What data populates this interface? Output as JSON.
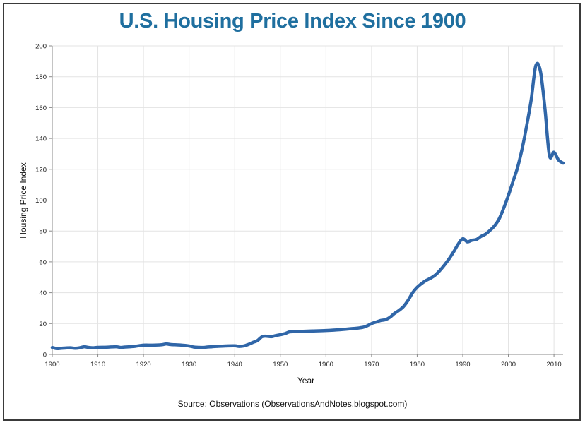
{
  "title": "U.S. Housing Price Index Since 1900",
  "source": "Source: Observations (ObservationsAndNotes.blogspot.com)",
  "colors": {
    "line": "#3066a8",
    "title": "#1f6f9f",
    "grid": "#e3e3e3"
  },
  "chart_data": {
    "type": "line",
    "title": "U.S. Housing Price Index Since 1900",
    "xlabel": "Year",
    "ylabel": "Housing Price Index",
    "xlim": [
      1900,
      2012
    ],
    "ylim": [
      0,
      200
    ],
    "xticks": [
      1900,
      1910,
      1920,
      1930,
      1940,
      1950,
      1960,
      1970,
      1980,
      1990,
      2000,
      2010
    ],
    "yticks": [
      0,
      20,
      40,
      60,
      80,
      100,
      120,
      140,
      160,
      180,
      200
    ],
    "grid": true,
    "legend": "none",
    "series": [
      {
        "x": [
          1900,
          1901,
          1902,
          1903,
          1904,
          1905,
          1906,
          1907,
          1908,
          1909,
          1910,
          1912,
          1914,
          1915,
          1916,
          1918,
          1920,
          1922,
          1924,
          1925,
          1926,
          1928,
          1930,
          1931,
          1932,
          1933,
          1934,
          1935,
          1936,
          1938,
          1940,
          1941,
          1942,
          1943,
          1944,
          1945,
          1946,
          1947,
          1948,
          1949,
          1950,
          1951,
          1952,
          1953,
          1954,
          1955,
          1957,
          1960,
          1963,
          1966,
          1968,
          1969,
          1970,
          1971,
          1972,
          1973,
          1974,
          1975,
          1976,
          1977,
          1978,
          1979,
          1980,
          1981,
          1982,
          1983,
          1984,
          1985,
          1986,
          1987,
          1988,
          1989,
          1990,
          1991,
          1992,
          1993,
          1994,
          1995,
          1996,
          1997,
          1998,
          1999,
          2000,
          2001,
          2002,
          2003,
          2004,
          2005,
          2006,
          2007,
          2008,
          2009,
          2010,
          2011,
          2012
        ],
        "values": [
          4.5,
          3.8,
          4.0,
          4.2,
          4.3,
          4.0,
          4.3,
          5.0,
          4.5,
          4.3,
          4.6,
          4.7,
          5.0,
          4.5,
          4.8,
          5.2,
          6.0,
          6.0,
          6.3,
          6.8,
          6.4,
          6.1,
          5.5,
          4.8,
          4.6,
          4.5,
          4.8,
          5.0,
          5.2,
          5.5,
          5.6,
          5.2,
          5.5,
          6.5,
          7.8,
          9.0,
          11.5,
          11.8,
          11.5,
          12.2,
          12.8,
          13.5,
          14.6,
          14.8,
          14.8,
          15.0,
          15.2,
          15.5,
          16.0,
          16.8,
          17.5,
          18.5,
          20.0,
          21.0,
          22.0,
          22.5,
          24.0,
          26.5,
          28.5,
          31.0,
          35.0,
          40.0,
          43.5,
          46.0,
          48.0,
          49.5,
          51.5,
          54.5,
          58.0,
          62.0,
          66.5,
          71.5,
          75.0,
          73.0,
          74.0,
          74.5,
          76.5,
          78.0,
          80.5,
          83.5,
          88.0,
          95.0,
          103.0,
          112.0,
          121.0,
          133.0,
          148.0,
          165.0,
          187.0,
          184.0,
          160.0,
          129.0,
          131.0,
          126.0,
          124.0
        ]
      }
    ]
  }
}
